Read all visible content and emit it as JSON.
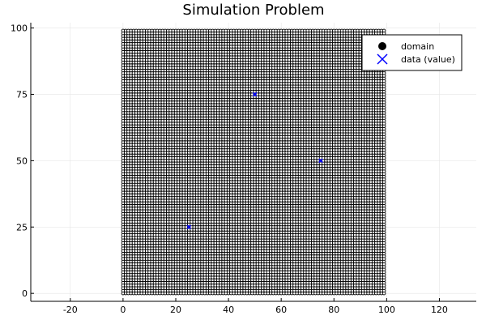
{
  "chart_data": {
    "type": "scatter",
    "title": "Simulation Problem",
    "xlabel": "",
    "ylabel": "",
    "xlim": [
      -35,
      134
    ],
    "ylim": [
      -3,
      102
    ],
    "x_ticks": [
      -20,
      0,
      20,
      40,
      60,
      80,
      100,
      120
    ],
    "y_ticks": [
      0,
      25,
      50,
      75,
      100
    ],
    "grid": true,
    "legend_position": "top-right",
    "series": [
      {
        "name": "domain",
        "marker": "circle",
        "color": "#000000",
        "grid_points": {
          "x_start": 0,
          "x_end": 99,
          "y_start": 0,
          "y_end": 99,
          "step": 1
        }
      },
      {
        "name": "data (value)",
        "marker": "x",
        "color": "#0000ff",
        "points": [
          {
            "x": 25,
            "y": 25
          },
          {
            "x": 50,
            "y": 75
          },
          {
            "x": 75,
            "y": 50
          }
        ]
      }
    ]
  }
}
